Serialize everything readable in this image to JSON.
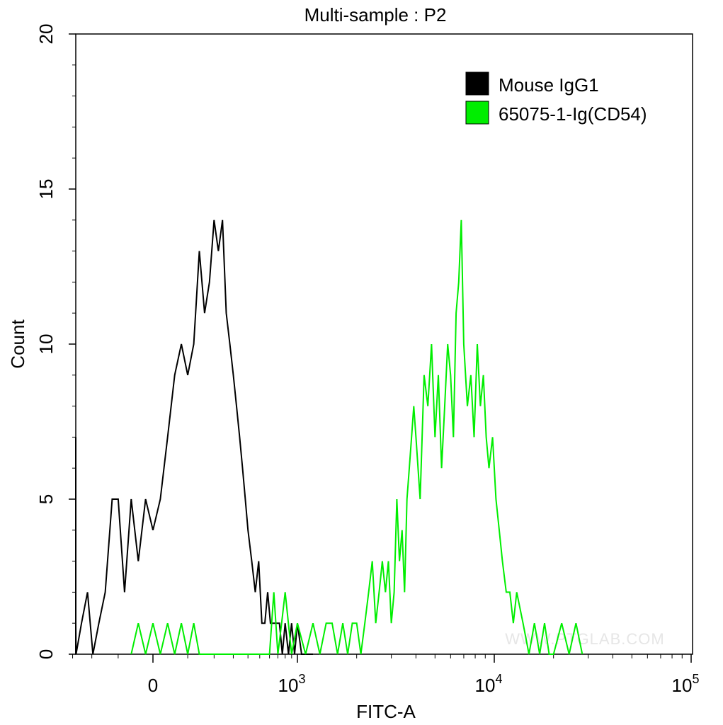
{
  "chart_data": {
    "type": "line",
    "title": "Multi-sample : P2",
    "xlabel": "FITC-A",
    "ylabel": "Count",
    "xscale": "biexponential",
    "x_ticks": [
      {
        "base": "0",
        "exp": "",
        "value": 0
      },
      {
        "base": "10",
        "exp": "3",
        "value": 1000
      },
      {
        "base": "10",
        "exp": "4",
        "value": 10000
      },
      {
        "base": "10",
        "exp": "5",
        "value": 100000
      }
    ],
    "ylim": [
      0,
      20
    ],
    "y_ticks": [
      0,
      5,
      10,
      15,
      20
    ],
    "grid": false,
    "legend": {
      "position": "top-right",
      "entries": [
        {
          "label": "Mouse IgG1",
          "color": "#000000"
        },
        {
          "label": "65075-1-Ig(CD54)",
          "color": "#00ee00"
        }
      ]
    },
    "watermark": "WWW.PTGLAB.COM",
    "series": [
      {
        "name": "Mouse IgG1",
        "color": "#000000",
        "x": [
          -400,
          -370,
          -340,
          -310,
          -280,
          -250,
          -220,
          -195,
          -170,
          -145,
          -120,
          -100,
          -80,
          -60,
          -40,
          -20,
          0,
          20,
          40,
          60,
          80,
          100,
          120,
          140,
          160,
          180,
          200,
          220,
          240,
          260,
          280,
          300,
          320,
          340,
          360,
          380,
          400,
          430,
          460,
          490,
          520,
          550,
          580,
          610,
          640,
          680,
          720,
          760,
          800,
          850,
          900,
          950,
          1000,
          1050,
          1100,
          1200
        ],
        "y": [
          7,
          1,
          0,
          1,
          0,
          1,
          2,
          0,
          1,
          2,
          5,
          5,
          2,
          5,
          3,
          5,
          4,
          5,
          7,
          9,
          10,
          9,
          10,
          13,
          11,
          12,
          14,
          13,
          14,
          11,
          10,
          9,
          8,
          7,
          6,
          5,
          4,
          3,
          2,
          3,
          1,
          1,
          2,
          1,
          1,
          1,
          1,
          0,
          1,
          0,
          1,
          0,
          1,
          0,
          0,
          0
        ],
        "smooth": false
      },
      {
        "name": "65075-1-Ig(CD54)",
        "color": "#00ee00",
        "x": [
          -60,
          -40,
          -20,
          0,
          20,
          40,
          60,
          80,
          100,
          120,
          140,
          600,
          650,
          700,
          750,
          800,
          900,
          1000,
          1100,
          1200,
          1300,
          1400,
          1500,
          1600,
          1700,
          1800,
          1900,
          2000,
          2100,
          2200,
          2300,
          2400,
          2500,
          2600,
          2700,
          2800,
          2900,
          3000,
          3100,
          3200,
          3300,
          3400,
          3500,
          3600,
          3700,
          3800,
          3900,
          4000,
          4200,
          4400,
          4600,
          4800,
          5000,
          5200,
          5400,
          5600,
          5800,
          6000,
          6200,
          6400,
          6600,
          6800,
          7000,
          7300,
          7600,
          7900,
          8200,
          8500,
          8800,
          9100,
          9400,
          9800,
          10200,
          10600,
          11000,
          11500,
          12000,
          12500,
          13000,
          14000,
          15000,
          16000,
          17000,
          18000,
          19000,
          20000,
          22000,
          24000,
          26000,
          28000
        ],
        "y": [
          0,
          1,
          0,
          1,
          0,
          1,
          0,
          1,
          0,
          1,
          0,
          0,
          2,
          0,
          1,
          2,
          0,
          1,
          0,
          1,
          0,
          1,
          1,
          0,
          1,
          0,
          1,
          1,
          0,
          1,
          2,
          3,
          1,
          2,
          3,
          2,
          3,
          1,
          2,
          5,
          3,
          4,
          2,
          5,
          6,
          7,
          8,
          7,
          5,
          9,
          8,
          10,
          7,
          9,
          6,
          8,
          10,
          9,
          7,
          11,
          12,
          14,
          10,
          8,
          9,
          7,
          10,
          8,
          9,
          7,
          6,
          7,
          5,
          4,
          3,
          2,
          2,
          1,
          2,
          1,
          0,
          1,
          0,
          1,
          0,
          0,
          1,
          0,
          1,
          0
        ],
        "smooth": false
      }
    ]
  }
}
